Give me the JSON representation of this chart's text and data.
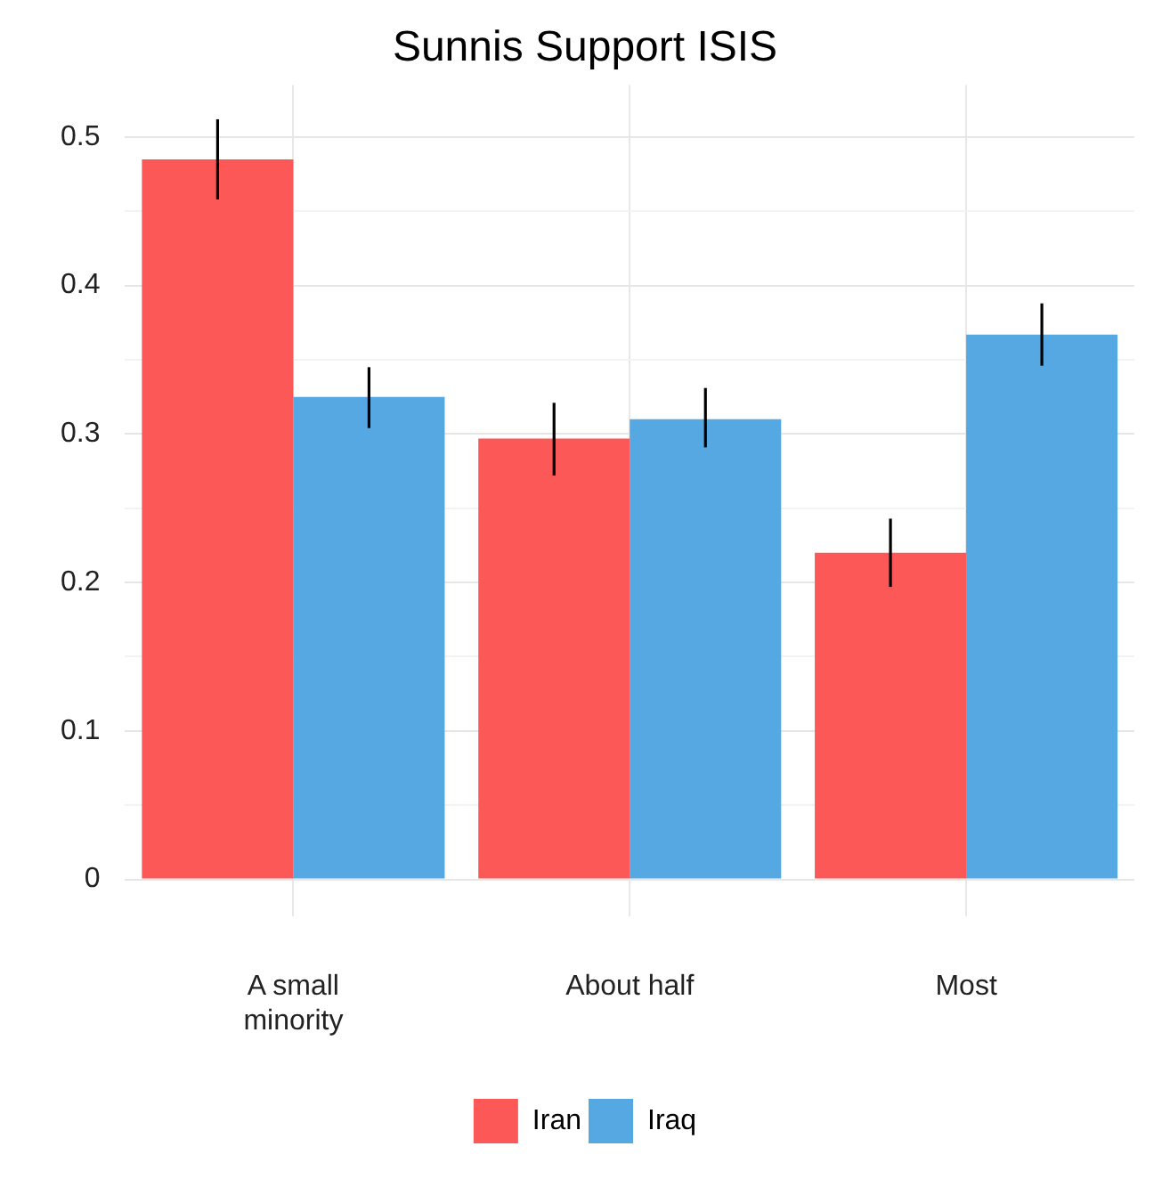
{
  "chart_data": {
    "type": "bar",
    "title": "Sunnis Support ISIS",
    "categories": [
      "A small minority",
      "About half",
      "Most"
    ],
    "series": [
      {
        "name": "Iran",
        "color": "#fc5858",
        "values": [
          0.485,
          0.297,
          0.22
        ],
        "errors": [
          [
            0.458,
            0.512
          ],
          [
            0.272,
            0.321
          ],
          [
            0.197,
            0.243
          ]
        ]
      },
      {
        "name": "Iraq",
        "color": "#56a8e3",
        "values": [
          0.325,
          0.31,
          0.367
        ],
        "errors": [
          [
            0.304,
            0.345
          ],
          [
            0.291,
            0.331
          ],
          [
            0.346,
            0.388
          ]
        ]
      }
    ],
    "ylim": [
      -0.025,
      0.535
    ],
    "yticks": [
      0,
      {
        "value": 0.05,
        "label": null
      },
      0.1,
      {
        "value": 0.15,
        "label": null
      },
      0.2,
      {
        "value": 0.25,
        "label": null
      },
      0.3,
      {
        "value": 0.35,
        "label": null
      },
      0.4,
      {
        "value": 0.45,
        "label": null
      },
      0.5
    ],
    "grid": true,
    "legend": "bottom"
  }
}
